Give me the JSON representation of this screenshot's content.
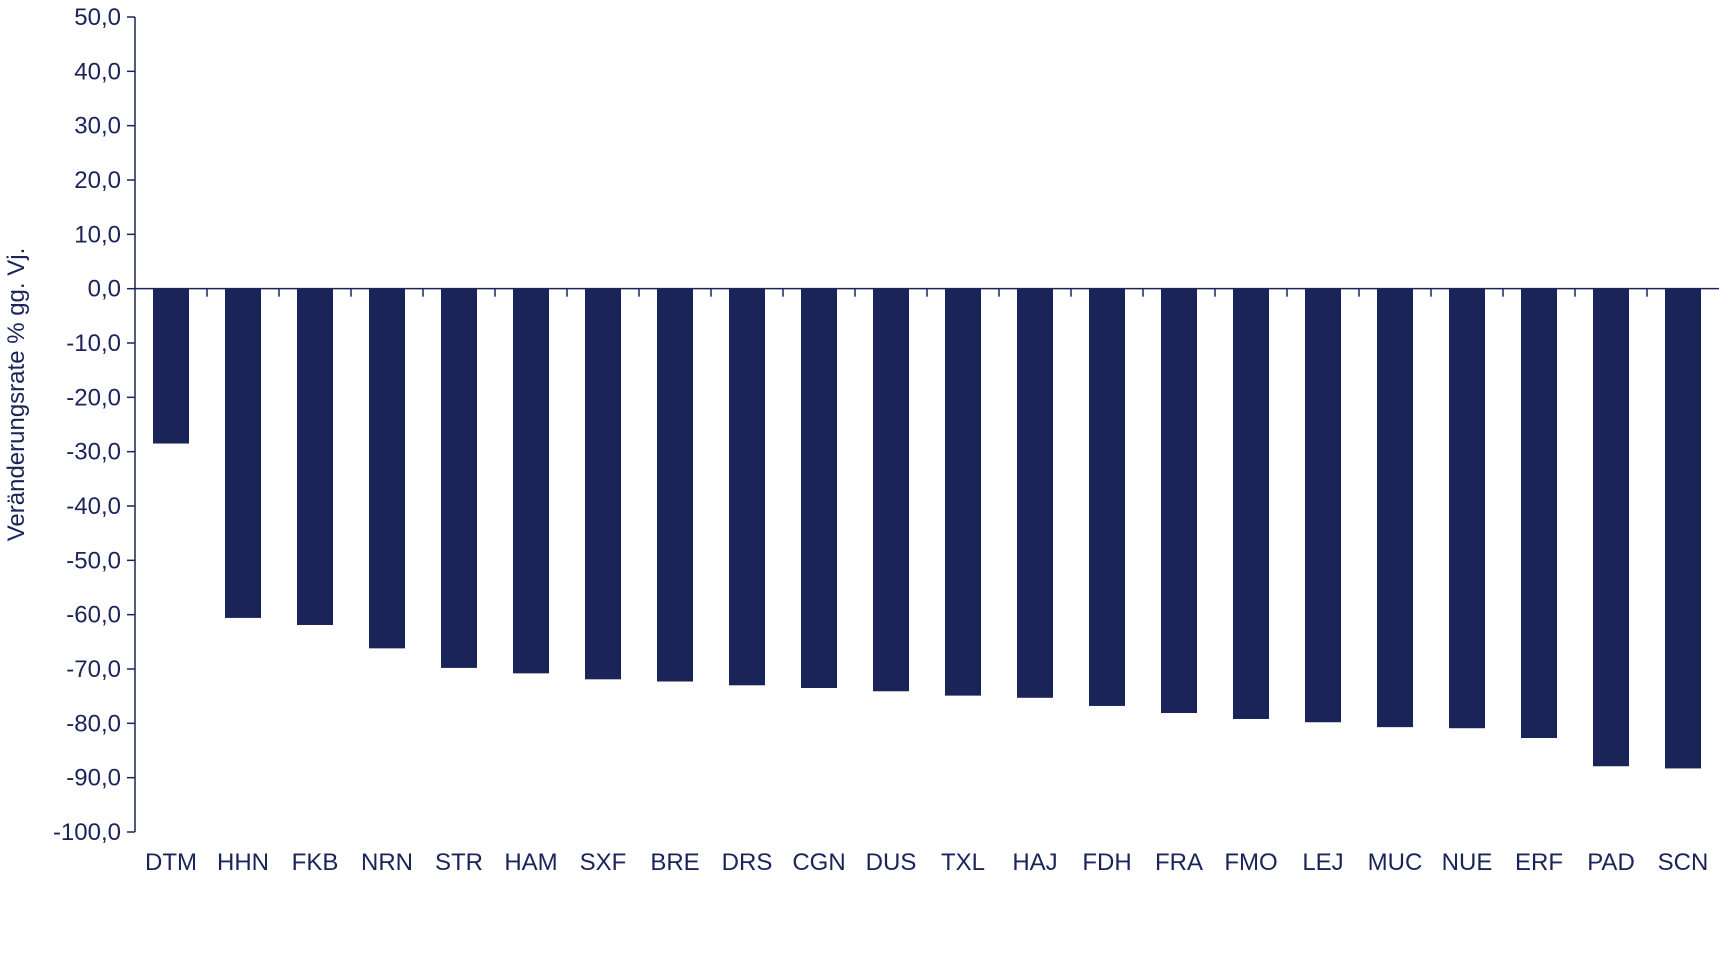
{
  "chart_data": {
    "type": "bar",
    "title": "",
    "xlabel": "",
    "ylabel": "Veränderungsrate % gg. Vj.",
    "ylim": [
      -100,
      50
    ],
    "ytick_step": 10,
    "ytick_labels": [
      "50,0",
      "40,0",
      "30,0",
      "20,0",
      "10,0",
      "0,0",
      "-10,0",
      "-20,0",
      "-30,0",
      "-40,0",
      "-50,0",
      "-60,0",
      "-70,0",
      "-80,0",
      "-90,0",
      "-100,0"
    ],
    "categories": [
      "DTM",
      "HHN",
      "FKB",
      "NRN",
      "STR",
      "HAM",
      "SXF",
      "BRE",
      "DRS",
      "CGN",
      "DUS",
      "TXL",
      "HAJ",
      "FDH",
      "FRA",
      "FMO",
      "LEJ",
      "MUC",
      "NUE",
      "ERF",
      "PAD",
      "SCN"
    ],
    "series": [
      {
        "values": [
          -28.5,
          -60.6,
          -61.9,
          -66.2,
          -69.8,
          -70.8,
          -71.9,
          -72.3,
          -73.0,
          -73.5,
          -74.1,
          -74.9,
          -75.3,
          -76.8,
          -78.1,
          -79.2,
          -79.8,
          -80.7,
          -80.9,
          -82.7,
          -87.9,
          -88.3
        ]
      }
    ],
    "bar_color": "#1a2459",
    "axis_color": "#1a2459",
    "grid": false,
    "legend": "none"
  }
}
